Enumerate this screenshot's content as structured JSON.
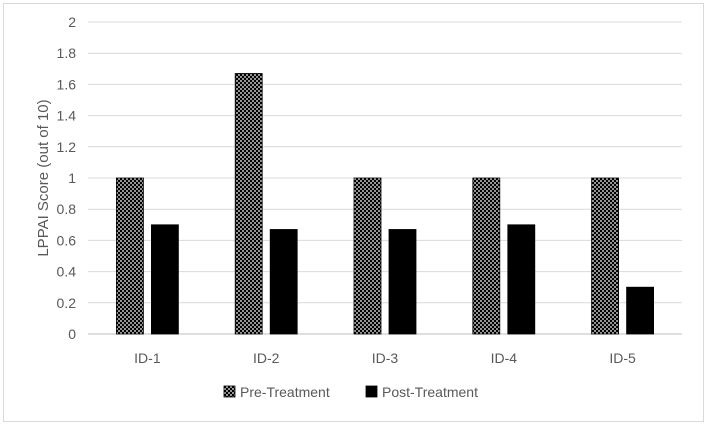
{
  "chart_data": {
    "type": "bar",
    "title": "",
    "xlabel": "",
    "ylabel": "LPPAI Score (out of 10)",
    "ylim": [
      0,
      2
    ],
    "yticks": [
      0,
      0.2,
      0.4,
      0.6,
      0.8,
      1,
      1.2,
      1.4,
      1.6,
      1.8,
      2
    ],
    "ytick_labels": [
      "0",
      "0.2",
      "0.4",
      "0.6",
      "0.8",
      "1",
      "1.2",
      "1.4",
      "1.6",
      "1.8",
      "2"
    ],
    "grid": true,
    "legend_position": "bottom",
    "categories": [
      "ID-1",
      "ID-2",
      "ID-3",
      "ID-4",
      "ID-5"
    ],
    "series": [
      {
        "name": "Pre-Treatment",
        "values": [
          1.0,
          1.67,
          1.0,
          1.0,
          1.0
        ],
        "pattern": "dotted",
        "color": "#000000"
      },
      {
        "name": "Post-Treatment",
        "values": [
          0.7,
          0.67,
          0.67,
          0.7,
          0.3
        ],
        "pattern": "solid",
        "color": "#000000"
      }
    ]
  }
}
